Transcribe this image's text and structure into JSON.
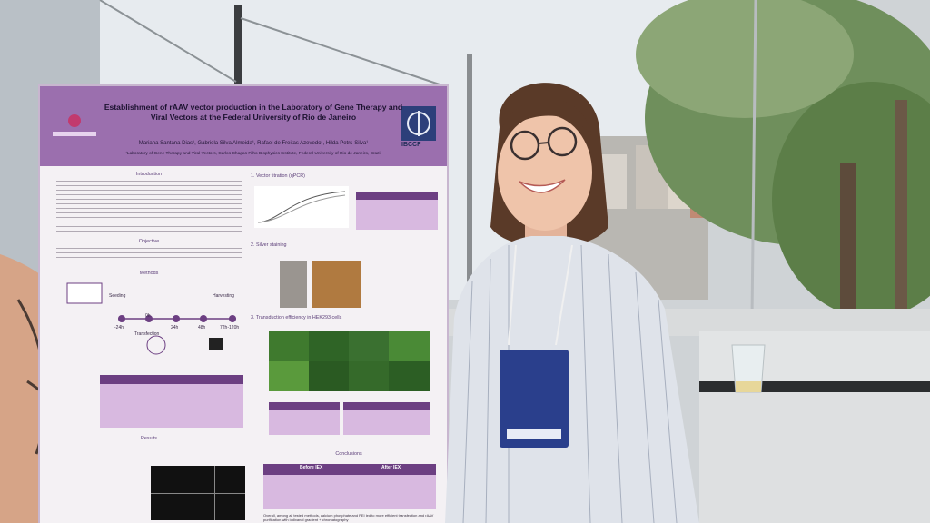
{
  "poster": {
    "title": "Establishment of rAAV vector production in the Laboratory of Gene Therapy and Viral Vectors at the Federal University of Rio de Janeiro",
    "authors": "Mariana Santana Dias¹, Gabriela Silva Almeida¹, Rafael de Freitas Azevedo¹, Hilda Petrs-Silva¹",
    "affiliation": "¹Laboratory of Gene Therapy and Viral Vectors, Carlos Chagas Filho Biophysics Institute, Federal University of Rio de Janeiro, Brazil",
    "logo_text": "IBCCF",
    "sections": {
      "introduction": "Introduction",
      "objective": "Objective",
      "methods": "Methods",
      "results": "Results",
      "vector_titration": "1. Vector titration (qPCR)",
      "silver_staining": "2. Silver staining",
      "transduction": "3. Transduction efficiency in HEK293 cells",
      "conclusions": "Conclusions"
    },
    "method_labels": {
      "seeding": "Seeding",
      "harvesting": "Harvesting",
      "t0": "-24h",
      "t1": "0h",
      "t2": "24h",
      "t3": "48h",
      "t4": "72h-120h",
      "transfection": "Transfection"
    },
    "conclusion_table": {
      "before_iex": "Before IEX",
      "after_iex": "After IEX"
    },
    "footer_text": "Overall, among all tested methods, calcium phosphate and PEI led to more efficient transfection and rAAV purification with iodixanol gradient + chromatography"
  },
  "colors": {
    "poster_header": "#9b6fae",
    "table_header": "#6c3f82",
    "shirt": "#dfe3ea",
    "badge": "#2a3f8c"
  }
}
